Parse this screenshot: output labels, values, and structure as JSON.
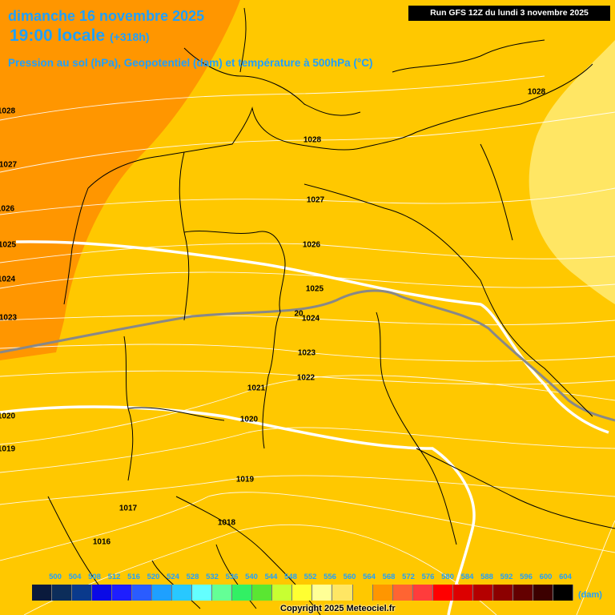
{
  "header": {
    "date_line": "dimanche 16 novembre 2025",
    "time_line": "19:00 locale",
    "offset": "(+318h)",
    "description": "Pression au sol (hPa), Geopotentiel (dam) et température à 500hPa (°C)",
    "run_info": "Run GFS 12Z du lundi 3 novembre 2025"
  },
  "isobar_labels": [
    "1028",
    "1027",
    "1026",
    "1025",
    "1024",
    "1023",
    "1020",
    "1019",
    "1028",
    "1028",
    "1027",
    "1026",
    "1025",
    "1024",
    "1023",
    "1022",
    "1021",
    "1020",
    "1019",
    "1018",
    "1017",
    "1016"
  ],
  "temperature_label": "20",
  "legend": {
    "values": [
      "500",
      "504",
      "508",
      "512",
      "516",
      "520",
      "524",
      "528",
      "532",
      "536",
      "540",
      "544",
      "548",
      "552",
      "556",
      "560",
      "564",
      "568",
      "572",
      "576",
      "580",
      "584",
      "588",
      "592",
      "596",
      "600",
      "604"
    ],
    "colors": [
      "#0a1a3c",
      "#0c2d5a",
      "#0a3a8c",
      "#0a0ae6",
      "#1e1eff",
      "#2a5cff",
      "#1ea0ff",
      "#28c8ff",
      "#64ffff",
      "#64ff96",
      "#32f064",
      "#5ae632",
      "#c8ff32",
      "#ffff32",
      "#ffff96",
      "#ffe664",
      "#ffc800",
      "#ff9600",
      "#ff6432",
      "#ff3c3c",
      "#ff0000",
      "#dc0000",
      "#b40000",
      "#8c0000",
      "#640000",
      "#3c0000",
      "#000000"
    ],
    "unit": "(dam)"
  },
  "copyright": "Copyright 2025 Meteociel.fr",
  "colors": {
    "area_564": "#ffc800",
    "area_568": "#ff9600",
    "area_560": "#ffe664",
    "title": "#1ea0ff"
  }
}
